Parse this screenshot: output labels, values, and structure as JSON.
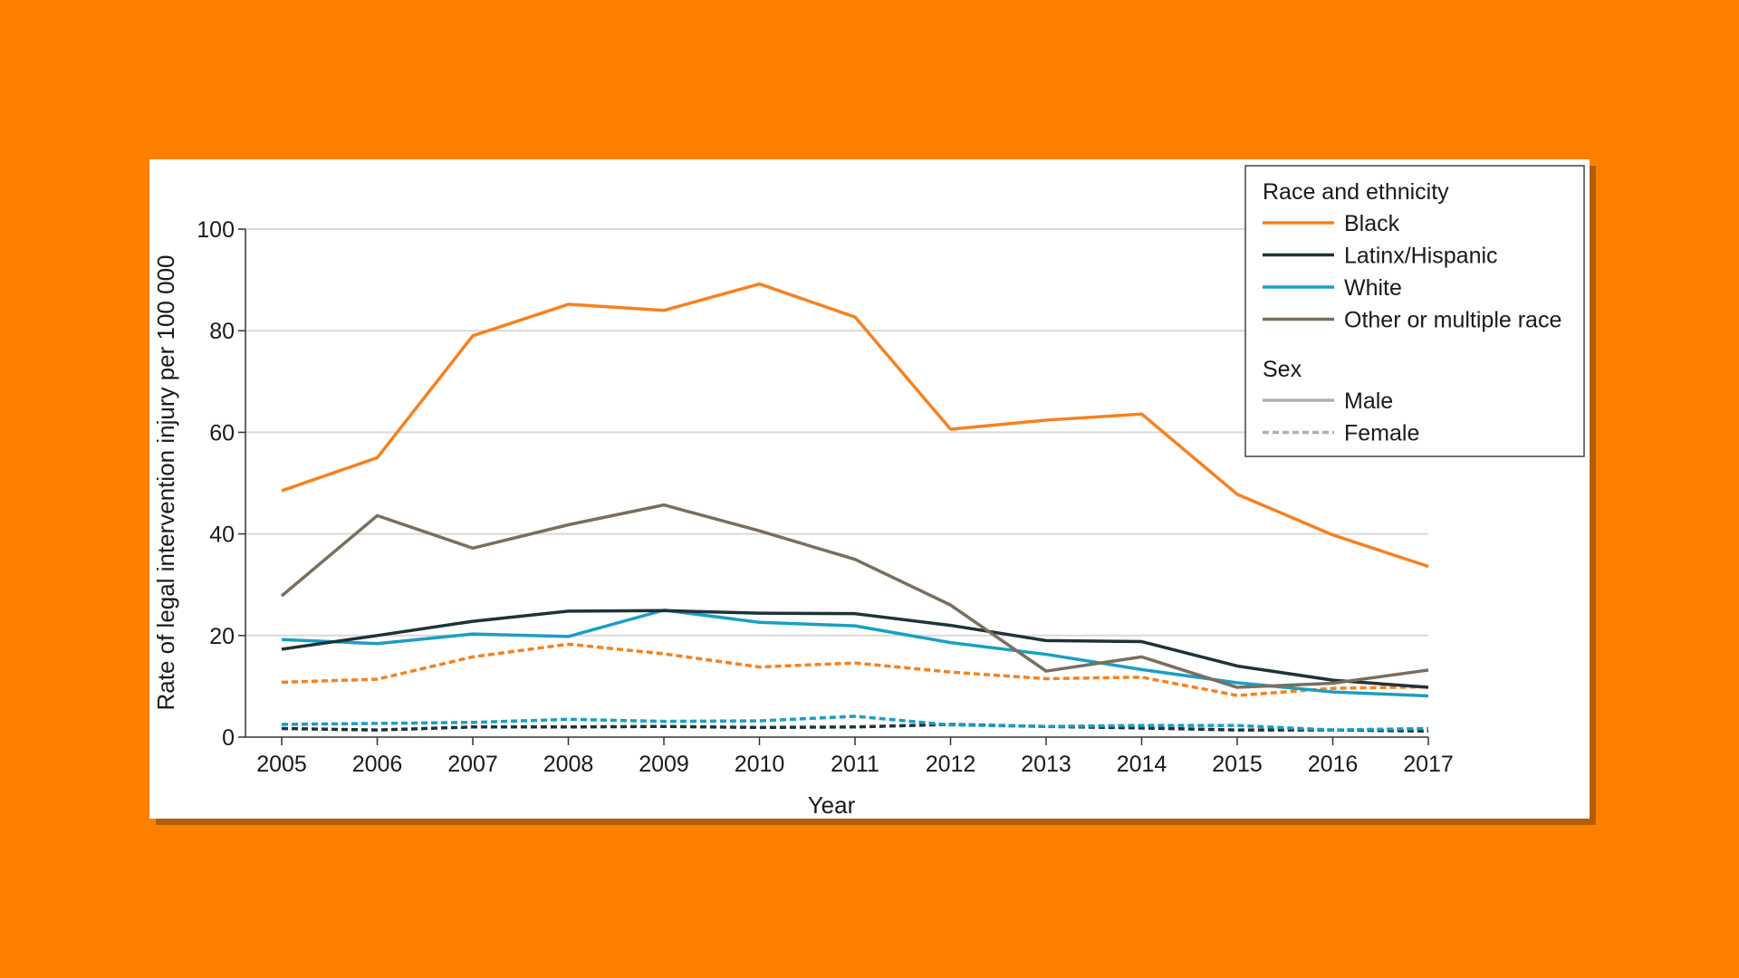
{
  "chart_data": {
    "type": "line",
    "xlabel": "Year",
    "ylabel": "Rate of legal intervention injury per 100 000",
    "ylim": [
      0,
      100
    ],
    "yticks": [
      0,
      20,
      40,
      60,
      80,
      100
    ],
    "x": [
      2005,
      2006,
      2007,
      2008,
      2009,
      2010,
      2011,
      2012,
      2013,
      2014,
      2015,
      2016,
      2017
    ],
    "grid": true,
    "legend_placement": "top-right",
    "legend": {
      "race_title": "Race and ethnicity",
      "race_items": [
        {
          "label": "Black",
          "color": "#F7811F"
        },
        {
          "label": "Latinx/Hispanic",
          "color": "#1E3338"
        },
        {
          "label": "White",
          "color": "#1A9FC4"
        },
        {
          "label": "Other or multiple race",
          "color": "#7A6E5E"
        }
      ],
      "sex_title": "Sex",
      "sex_items": [
        {
          "label": "Male",
          "style": "solid",
          "color": "#B0B0B0"
        },
        {
          "label": "Female",
          "style": "dashed",
          "color": "#B0B0B0"
        }
      ]
    },
    "series": [
      {
        "race": "Black",
        "sex": "Male",
        "color": "#F7811F",
        "dashed": false,
        "values": [
          48.5,
          55,
          79,
          85.2,
          84,
          89.2,
          82.7,
          60.6,
          62.4,
          63.6,
          47.8,
          39.8,
          33.6
        ]
      },
      {
        "race": "Other or multiple race",
        "sex": "Male",
        "color": "#7A6E5E",
        "dashed": false,
        "values": [
          27.8,
          43.6,
          37.2,
          41.8,
          45.7,
          40.6,
          35,
          26,
          13,
          15.8,
          9.8,
          10.6,
          13.2
        ]
      },
      {
        "race": "Latinx/Hispanic",
        "sex": "Male",
        "color": "#1E3338",
        "dashed": false,
        "values": [
          17.3,
          20,
          22.8,
          24.8,
          24.9,
          24.4,
          24.3,
          22,
          19,
          18.8,
          14,
          11.2,
          9.8
        ]
      },
      {
        "race": "White",
        "sex": "Male",
        "color": "#1A9FC4",
        "dashed": false,
        "values": [
          19.2,
          18.4,
          20.3,
          19.8,
          25,
          22.6,
          21.9,
          18.6,
          16.3,
          13.3,
          10.7,
          8.9,
          8.1
        ]
      },
      {
        "race": "Black",
        "sex": "Female",
        "color": "#F7811F",
        "dashed": true,
        "values": [
          10.8,
          11.4,
          15.8,
          18.3,
          16.4,
          13.8,
          14.6,
          12.8,
          11.5,
          11.8,
          8.2,
          9.6,
          9.9
        ]
      },
      {
        "race": "White",
        "sex": "Female",
        "color": "#1A9FC4",
        "dashed": true,
        "values": [
          2.5,
          2.7,
          2.9,
          3.5,
          3.1,
          3.2,
          4.1,
          2.4,
          2.1,
          2.3,
          2.3,
          1.4,
          1.7
        ]
      },
      {
        "race": "Latinx/Hispanic",
        "sex": "Female",
        "color": "#1E3338",
        "dashed": true,
        "values": [
          1.7,
          1.4,
          2.0,
          2.0,
          2.1,
          1.9,
          2.0,
          2.5,
          2.1,
          1.8,
          1.4,
          1.4,
          1.2
        ]
      }
    ]
  }
}
